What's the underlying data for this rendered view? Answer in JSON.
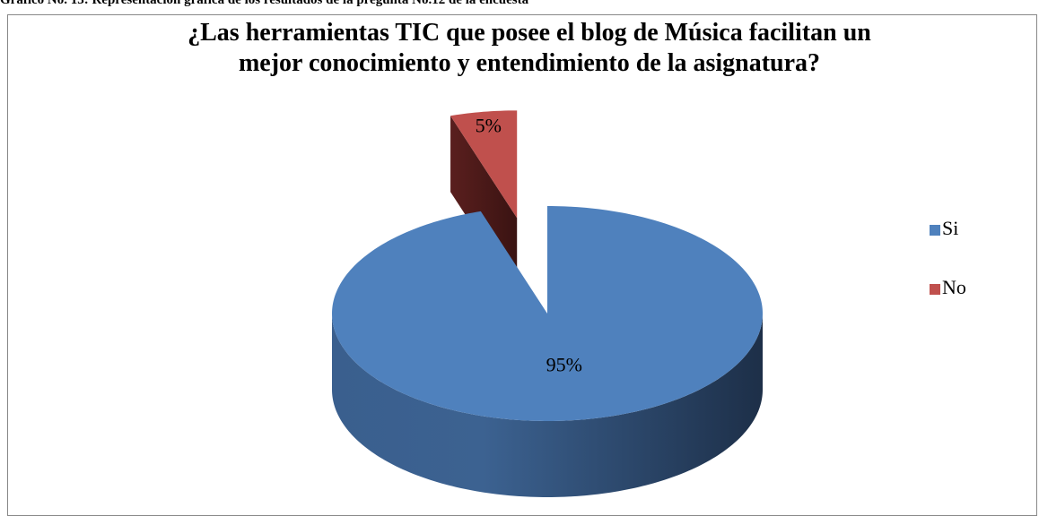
{
  "caption": "Gráfico No. 13: Representación gráfica de los resultados de la pregunta No.12 de la encuesta",
  "chart_data": {
    "type": "pie",
    "title": "¿Las herramientas TIC que posee el blog de Música facilitan un mejor conocimiento y entendimiento de la asignatura?",
    "categories": [
      "Si",
      "No"
    ],
    "values": [
      95,
      5
    ],
    "value_labels": [
      "95%",
      "5%"
    ],
    "colors": [
      "#4f81bd",
      "#c0504d"
    ],
    "legend": "right"
  }
}
